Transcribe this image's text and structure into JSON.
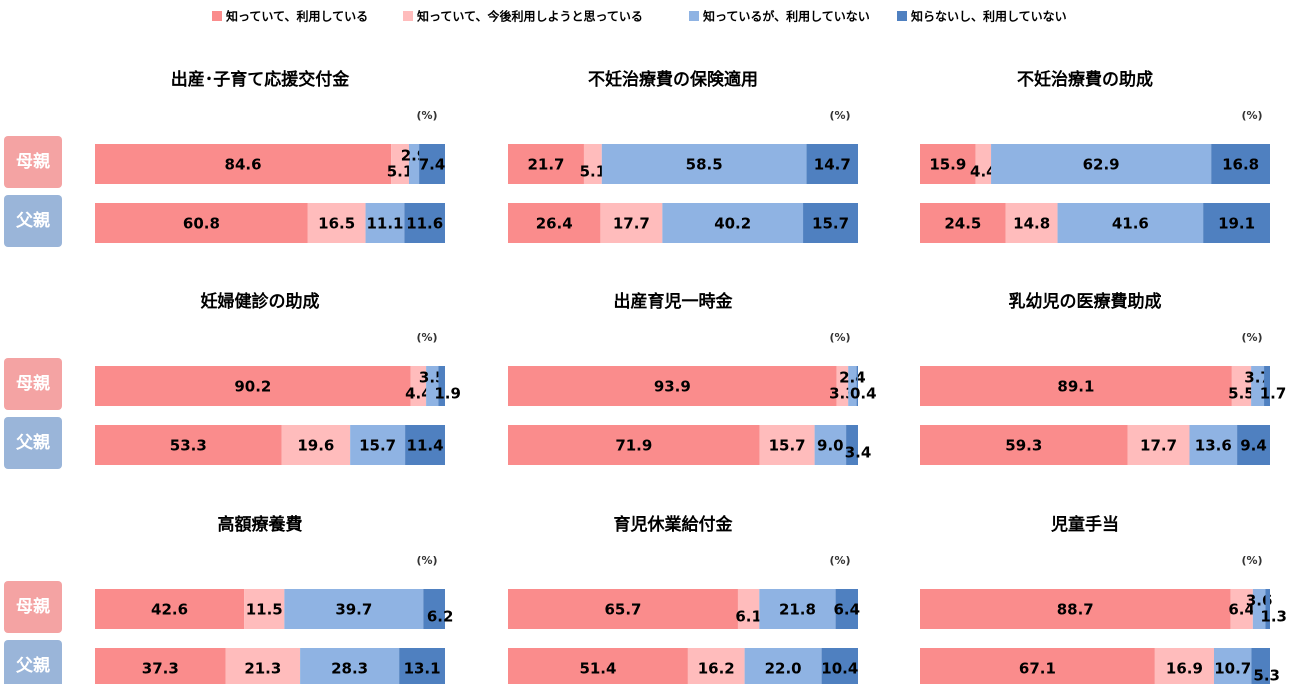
{
  "chart_data": {
    "type": "bar",
    "stacked": true,
    "orientation": "horizontal",
    "xlim": [
      0,
      100
    ],
    "unit": "(%)",
    "categories": [
      "母親",
      "父親"
    ],
    "series": [
      {
        "name": "知っていて、利用している",
        "color": "#fa8c8c"
      },
      {
        "name": "知っていて、今後利用しようと思っている",
        "color": "#ffbcbc"
      },
      {
        "name": "知っているが、利用していない",
        "color": "#8fb3e3"
      },
      {
        "name": "知らないし、利用していない",
        "color": "#4f80c0"
      }
    ],
    "panels": [
      {
        "title": "出産･子育て応援交付金",
        "values": [
          [
            84.6,
            5.1,
            2.9,
            7.4
          ],
          [
            60.8,
            16.5,
            11.1,
            11.6
          ]
        ]
      },
      {
        "title": "不妊治療費の保険適用",
        "values": [
          [
            21.7,
            5.1,
            58.5,
            14.7
          ],
          [
            26.4,
            17.7,
            40.2,
            15.7
          ]
        ]
      },
      {
        "title": "不妊治療費の助成",
        "values": [
          [
            15.9,
            4.4,
            62.9,
            16.8
          ],
          [
            24.5,
            14.8,
            41.6,
            19.1
          ]
        ]
      },
      {
        "title": "妊婦健診の助成",
        "values": [
          [
            90.2,
            4.4,
            3.5,
            1.9
          ],
          [
            53.3,
            19.6,
            15.7,
            11.4
          ]
        ]
      },
      {
        "title": "出産育児一時金",
        "values": [
          [
            93.9,
            3.3,
            2.4,
            0.4
          ],
          [
            71.9,
            15.7,
            9.0,
            3.4
          ]
        ],
        "value_labels": [
          [
            "93.9",
            "3.3",
            "2.4",
            "0.4"
          ],
          [
            "71.9",
            "15.7",
            "9.0",
            "3.4"
          ]
        ]
      },
      {
        "title": "乳幼児の医療費助成",
        "values": [
          [
            89.1,
            5.5,
            3.7,
            1.7
          ],
          [
            59.3,
            17.7,
            13.6,
            9.4
          ]
        ]
      },
      {
        "title": "高額療養費",
        "values": [
          [
            42.6,
            11.5,
            39.7,
            6.2
          ],
          [
            37.3,
            21.3,
            28.3,
            13.1
          ]
        ]
      },
      {
        "title": "育児休業給付金",
        "values": [
          [
            65.7,
            6.1,
            21.8,
            6.4
          ],
          [
            51.4,
            16.2,
            22.0,
            10.4
          ]
        ],
        "value_labels": [
          [
            "65.7",
            "6.1",
            "21.8",
            "6.4"
          ],
          [
            "51.4",
            "16.2",
            "22.0",
            "10.4"
          ]
        ]
      },
      {
        "title": "児童手当",
        "values": [
          [
            88.7,
            6.4,
            3.6,
            1.3
          ],
          [
            67.1,
            16.9,
            10.7,
            5.3
          ]
        ]
      }
    ]
  }
}
